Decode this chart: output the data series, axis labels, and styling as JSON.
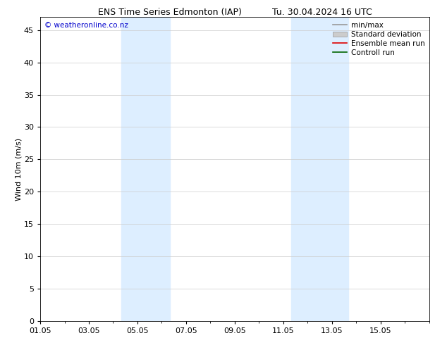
{
  "title_left": "ENS Time Series Edmonton (IAP)",
  "title_right": "Tu. 30.04.2024 16 UTC",
  "ylabel": "Wind 10m (m/s)",
  "watermark": "© weatheronline.co.nz",
  "watermark_color": "#0000cc",
  "xlim_start": 0,
  "xlim_end": 16,
  "ylim_min": 0,
  "ylim_max": 47,
  "yticks": [
    0,
    5,
    10,
    15,
    20,
    25,
    30,
    35,
    40,
    45
  ],
  "xtick_labels": [
    "01.05",
    "03.05",
    "05.05",
    "07.05",
    "09.05",
    "11.05",
    "13.05",
    "15.05"
  ],
  "xtick_positions": [
    0,
    2,
    4,
    6,
    8,
    10,
    12,
    14
  ],
  "bg_color": "#ffffff",
  "plot_bg_color": "#ffffff",
  "shade_regions": [
    {
      "xstart": 3.33,
      "xend": 4.0,
      "color": "#ddeeff"
    },
    {
      "xstart": 4.0,
      "xend": 5.33,
      "color": "#ddeeff"
    },
    {
      "xstart": 10.33,
      "xend": 11.0,
      "color": "#ddeeff"
    },
    {
      "xstart": 11.0,
      "xend": 12.67,
      "color": "#ddeeff"
    }
  ],
  "legend_items": [
    {
      "label": "min/max",
      "color": "#999999",
      "linewidth": 1.2,
      "linestyle": "-",
      "type": "line"
    },
    {
      "label": "Standard deviation",
      "color": "#cccccc",
      "linewidth": 6,
      "linestyle": "-",
      "type": "box"
    },
    {
      "label": "Ensemble mean run",
      "color": "#dd0000",
      "linewidth": 1.2,
      "linestyle": "-",
      "type": "line"
    },
    {
      "label": "Controll run",
      "color": "#006600",
      "linewidth": 1.2,
      "linestyle": "-",
      "type": "line"
    }
  ],
  "grid_color": "#cccccc",
  "tick_color": "#000000",
  "font_color": "#000000",
  "title_fontsize": 9,
  "axis_fontsize": 8,
  "ylabel_fontsize": 8,
  "legend_fontsize": 7.5,
  "watermark_fontsize": 7.5
}
